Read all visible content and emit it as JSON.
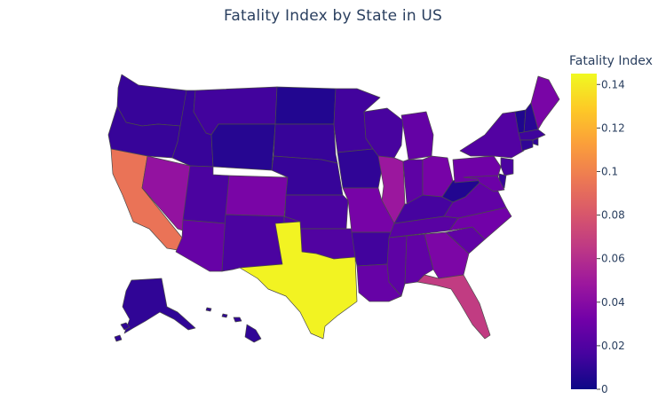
{
  "chart_data": {
    "type": "choropleth",
    "title": "Fatality Index by State in US",
    "colorbar": {
      "title": "Fatality Index",
      "range": [
        0,
        0.145
      ],
      "ticks": [
        {
          "value": 0,
          "label": "0"
        },
        {
          "value": 0.02,
          "label": "0.02"
        },
        {
          "value": 0.04,
          "label": "0.04"
        },
        {
          "value": 0.06,
          "label": "0.06"
        },
        {
          "value": 0.08,
          "label": "0.08"
        },
        {
          "value": 0.1,
          "label": "0.1"
        },
        {
          "value": 0.12,
          "label": "0.12"
        },
        {
          "value": 0.14,
          "label": "0.14"
        }
      ],
      "colorscale": [
        "#0d0887",
        "#46039f",
        "#7201a8",
        "#9c179e",
        "#bd3786",
        "#d8576b",
        "#ed7953",
        "#fb9f3a",
        "#fdca26",
        "#f0f921"
      ]
    },
    "states": [
      {
        "id": "WA",
        "value": 0.012
      },
      {
        "id": "OR",
        "value": 0.012
      },
      {
        "id": "CA",
        "value": 0.094
      },
      {
        "id": "NV",
        "value": 0.045
      },
      {
        "id": "ID",
        "value": 0.012
      },
      {
        "id": "MT",
        "value": 0.015
      },
      {
        "id": "WY",
        "value": 0.007
      },
      {
        "id": "UT",
        "value": 0.018
      },
      {
        "id": "AZ",
        "value": 0.028
      },
      {
        "id": "CO",
        "value": 0.035
      },
      {
        "id": "NM",
        "value": 0.018
      },
      {
        "id": "ND",
        "value": 0.006
      },
      {
        "id": "SD",
        "value": 0.012
      },
      {
        "id": "NE",
        "value": 0.012
      },
      {
        "id": "KS",
        "value": 0.018
      },
      {
        "id": "OK",
        "value": 0.02
      },
      {
        "id": "TX",
        "value": 0.143
      },
      {
        "id": "MN",
        "value": 0.015
      },
      {
        "id": "IA",
        "value": 0.01
      },
      {
        "id": "MO",
        "value": 0.034
      },
      {
        "id": "AR",
        "value": 0.015
      },
      {
        "id": "LA",
        "value": 0.028
      },
      {
        "id": "WI",
        "value": 0.017
      },
      {
        "id": "IL",
        "value": 0.048
      },
      {
        "id": "MI",
        "value": 0.027
      },
      {
        "id": "IN",
        "value": 0.025
      },
      {
        "id": "OH",
        "value": 0.034
      },
      {
        "id": "KY",
        "value": 0.016
      },
      {
        "id": "TN",
        "value": 0.023
      },
      {
        "id": "MS",
        "value": 0.025
      },
      {
        "id": "AL",
        "value": 0.026
      },
      {
        "id": "GA",
        "value": 0.036
      },
      {
        "id": "FL",
        "value": 0.067
      },
      {
        "id": "SC",
        "value": 0.026
      },
      {
        "id": "NC",
        "value": 0.032
      },
      {
        "id": "VA",
        "value": 0.026
      },
      {
        "id": "WV",
        "value": 0.006
      },
      {
        "id": "PA",
        "value": 0.031
      },
      {
        "id": "NY",
        "value": 0.021
      },
      {
        "id": "VT",
        "value": 0.005
      },
      {
        "id": "NH",
        "value": 0.008
      },
      {
        "id": "ME",
        "value": 0.035
      },
      {
        "id": "MA",
        "value": 0.014
      },
      {
        "id": "RI",
        "value": 0.01
      },
      {
        "id": "CT",
        "value": 0.01
      },
      {
        "id": "NJ",
        "value": 0.018
      },
      {
        "id": "DE",
        "value": 0.012
      },
      {
        "id": "MD",
        "value": 0.03
      },
      {
        "id": "AK",
        "value": 0.01
      },
      {
        "id": "HI",
        "value": 0.01
      }
    ]
  }
}
